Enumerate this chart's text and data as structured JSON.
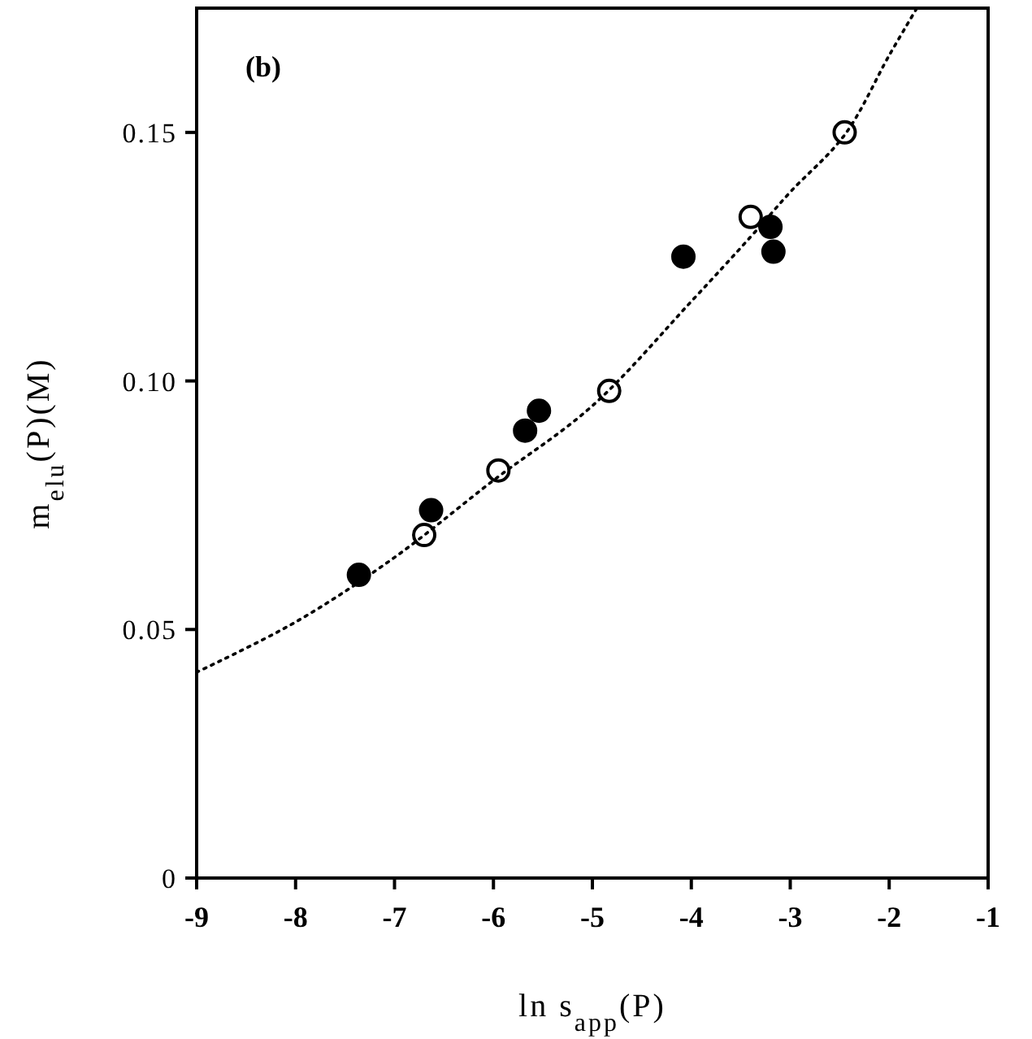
{
  "chart_data": {
    "type": "scatter",
    "xlabel": "ln s$_{app}$(P)",
    "ylabel": "m$_{elu}$(P)(M)",
    "annotations": [
      "(b)"
    ],
    "xlim": [
      -9,
      -1
    ],
    "xticks": [
      -9,
      -8,
      -7,
      -6,
      -5,
      -4,
      -3,
      -2,
      -1
    ],
    "ylim": [
      0,
      0.175
    ],
    "yticks": [
      0,
      0.05,
      {
        "value": 0.1,
        "label": "0.10"
      },
      0.15
    ],
    "grid": false,
    "series": [
      {
        "marker": "circle",
        "color": "#000000",
        "x": [
          -7.36,
          -6.63,
          -5.68,
          -5.54,
          -4.08,
          -3.2,
          -3.17
        ],
        "values": [
          0.061,
          0.074,
          0.09,
          0.094,
          0.125,
          0.131,
          0.126
        ]
      },
      {
        "marker": "circle",
        "color": "#ffffff",
        "x": [
          -6.7,
          -5.95,
          -4.83,
          -3.4,
          -2.45
        ],
        "values": [
          0.069,
          0.082,
          0.098,
          0.133,
          0.15
        ]
      },
      {
        "type": "line",
        "marker": "none",
        "line_style": "dotted",
        "color": "#000000",
        "x": [
          -9,
          -8,
          -7,
          -6,
          -5,
          -4,
          -3.4,
          -3,
          -2.45,
          -2,
          -1.72
        ],
        "values": [
          0.0414,
          0.0515,
          0.0645,
          0.08,
          0.095,
          0.116,
          0.129,
          0.138,
          0.1495,
          0.1655,
          0.175
        ]
      }
    ]
  }
}
